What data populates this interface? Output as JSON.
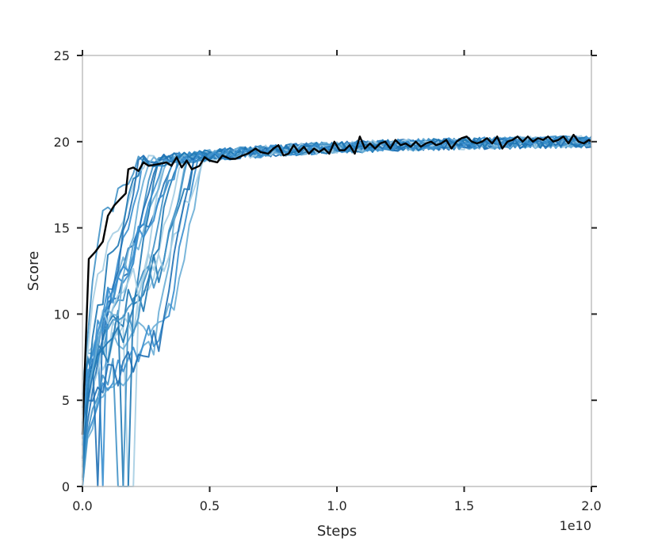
{
  "chart_data": {
    "type": "line",
    "title": "",
    "xlabel": "Steps",
    "ylabel": "Score",
    "x_offset_label": "1e10",
    "xlim": [
      0,
      2.0
    ],
    "ylim": [
      0,
      25
    ],
    "xticks": [
      0.0,
      0.5,
      1.0,
      1.5,
      2.0
    ],
    "xtick_labels": [
      "0.0",
      "0.5",
      "1.0",
      "1.5",
      "2.0"
    ],
    "yticks": [
      0,
      5,
      10,
      15,
      20,
      25
    ],
    "ytick_labels": [
      "0",
      "5",
      "10",
      "15",
      "20",
      "25"
    ],
    "grid": false,
    "legend": null,
    "colors": {
      "runs": [
        "#a6cee3",
        "#6baed6",
        "#4292c6",
        "#2171b5",
        "#1f78b4",
        "#3a8fcf"
      ],
      "mean": "#000000",
      "frame": "#bfbfbf"
    },
    "series": [
      {
        "role": "mean",
        "points": [
          [
            0.0,
            3.0
          ],
          [
            0.025,
            13.2
          ],
          [
            0.05,
            13.6
          ],
          [
            0.08,
            14.2
          ],
          [
            0.1,
            15.7
          ],
          [
            0.125,
            16.3
          ],
          [
            0.15,
            16.7
          ],
          [
            0.17,
            17.0
          ],
          [
            0.18,
            18.4
          ],
          [
            0.2,
            18.5
          ],
          [
            0.22,
            18.3
          ],
          [
            0.24,
            18.8
          ],
          [
            0.26,
            18.6
          ],
          [
            0.3,
            18.7
          ],
          [
            0.33,
            18.8
          ],
          [
            0.35,
            18.6
          ],
          [
            0.37,
            19.1
          ],
          [
            0.39,
            18.5
          ],
          [
            0.41,
            18.9
          ],
          [
            0.43,
            18.4
          ],
          [
            0.46,
            18.6
          ],
          [
            0.48,
            19.1
          ],
          [
            0.5,
            18.9
          ],
          [
            0.53,
            18.8
          ],
          [
            0.55,
            19.2
          ],
          [
            0.58,
            19.0
          ],
          [
            0.6,
            19.0
          ],
          [
            0.63,
            19.2
          ],
          [
            0.65,
            19.3
          ],
          [
            0.68,
            19.6
          ],
          [
            0.7,
            19.4
          ],
          [
            0.73,
            19.3
          ],
          [
            0.75,
            19.6
          ],
          [
            0.77,
            19.8
          ],
          [
            0.79,
            19.2
          ],
          [
            0.81,
            19.3
          ],
          [
            0.83,
            19.8
          ],
          [
            0.85,
            19.4
          ],
          [
            0.87,
            19.7
          ],
          [
            0.89,
            19.3
          ],
          [
            0.91,
            19.6
          ],
          [
            0.93,
            19.4
          ],
          [
            0.95,
            19.6
          ],
          [
            0.97,
            19.3
          ],
          [
            0.99,
            20.0
          ],
          [
            1.01,
            19.5
          ],
          [
            1.03,
            19.5
          ],
          [
            1.05,
            19.8
          ],
          [
            1.07,
            19.3
          ],
          [
            1.09,
            20.3
          ],
          [
            1.11,
            19.6
          ],
          [
            1.13,
            19.9
          ],
          [
            1.15,
            19.6
          ],
          [
            1.17,
            19.9
          ],
          [
            1.19,
            20.0
          ],
          [
            1.21,
            19.6
          ],
          [
            1.23,
            20.1
          ],
          [
            1.25,
            19.8
          ],
          [
            1.27,
            19.9
          ],
          [
            1.29,
            19.7
          ],
          [
            1.31,
            20.0
          ],
          [
            1.33,
            19.7
          ],
          [
            1.35,
            19.9
          ],
          [
            1.37,
            20.0
          ],
          [
            1.39,
            19.8
          ],
          [
            1.41,
            19.9
          ],
          [
            1.43,
            20.1
          ],
          [
            1.45,
            19.6
          ],
          [
            1.47,
            20.0
          ],
          [
            1.49,
            20.2
          ],
          [
            1.51,
            20.3
          ],
          [
            1.53,
            20.0
          ],
          [
            1.55,
            19.9
          ],
          [
            1.57,
            20.0
          ],
          [
            1.59,
            20.2
          ],
          [
            1.61,
            19.9
          ],
          [
            1.63,
            20.3
          ],
          [
            1.65,
            19.6
          ],
          [
            1.67,
            20.0
          ],
          [
            1.69,
            20.1
          ],
          [
            1.71,
            20.3
          ],
          [
            1.73,
            20.0
          ],
          [
            1.75,
            20.3
          ],
          [
            1.77,
            20.0
          ],
          [
            1.79,
            20.2
          ],
          [
            1.81,
            20.1
          ],
          [
            1.83,
            20.3
          ],
          [
            1.85,
            20.0
          ],
          [
            1.87,
            20.1
          ],
          [
            1.89,
            20.3
          ],
          [
            1.91,
            19.9
          ],
          [
            1.93,
            20.4
          ],
          [
            1.95,
            20.0
          ],
          [
            1.97,
            19.9
          ],
          [
            1.99,
            20.1
          ],
          [
            2.0,
            20.0
          ]
        ]
      }
    ]
  }
}
